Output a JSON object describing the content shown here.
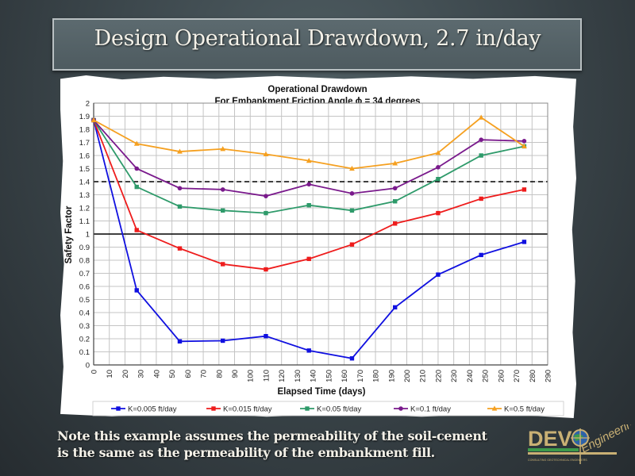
{
  "slide": {
    "title": "Design Operational Drawdown, 2.7 in/day",
    "note_line1": "Note this example assumes the permeability of the soil-cement",
    "note_line2": "is the same as the permeability of the embankment fill.",
    "logo": {
      "text": "DEVO",
      "script": "Engineering",
      "tagline": "CONSULTING GEOTECHNICAL ENGINEERS",
      "colors": {
        "gold": "#c9b074",
        "green": "#3d9a4a",
        "blue": "#2e62a8"
      }
    }
  },
  "chart_data": {
    "type": "line",
    "title": "Operational Drawdown",
    "subtitle": "For Embankment Friction Angle ϕ = 34 degrees",
    "xlabel": "Elapsed Time (days)",
    "ylabel": "Safety Factor",
    "xlim": [
      0,
      290
    ],
    "ylim": [
      0,
      2
    ],
    "xticks": [
      0,
      10,
      20,
      30,
      40,
      50,
      60,
      70,
      80,
      90,
      100,
      110,
      120,
      130,
      140,
      150,
      160,
      170,
      180,
      190,
      200,
      210,
      220,
      230,
      240,
      250,
      260,
      270,
      280,
      290
    ],
    "xtick_labels": [
      "0",
      "10",
      "20",
      "30",
      "40",
      "50",
      "60",
      "70",
      "80",
      "90",
      "100",
      "110",
      "120",
      "130",
      "140",
      "150",
      "160",
      "170",
      "180",
      "190",
      "200",
      "210",
      "220",
      "230",
      "240",
      "250",
      "260",
      "270",
      "280",
      "290"
    ],
    "yticks": [
      0,
      0.1,
      0.2,
      0.3,
      0.4,
      0.5,
      0.6,
      0.7,
      0.8,
      0.9,
      1,
      1.1,
      1.2,
      1.3,
      1.4,
      1.5,
      1.6,
      1.7,
      1.8,
      1.9,
      2
    ],
    "ytick_labels": [
      "0",
      "0.1",
      "0.2",
      "0.3",
      "0.4",
      "0.5",
      "0.6",
      "0.7",
      "0.8",
      "0.9",
      "1",
      "1.1",
      "1.2",
      "1.3",
      "1.4",
      "1.5",
      "1.6",
      "1.7",
      "1.8",
      "1.9",
      "2"
    ],
    "grid": true,
    "legend_position": "bottom",
    "reference_lines": [
      {
        "y": 1.0,
        "style": "solid",
        "color": "#000000"
      },
      {
        "y": 1.4,
        "style": "dashed",
        "color": "#000000"
      }
    ],
    "x": [
      0,
      27.5,
      55,
      82.5,
      110,
      137.5,
      165,
      192.5,
      220,
      247.5,
      275
    ],
    "series": [
      {
        "name": "K=0.005 ft/day",
        "color": "#1010e0",
        "marker": "square",
        "values": [
          1.87,
          0.57,
          0.18,
          0.185,
          0.22,
          0.11,
          0.05,
          0.44,
          0.69,
          0.84,
          0.94
        ]
      },
      {
        "name": "K=0.015 ft/day",
        "color": "#ee1c1c",
        "marker": "square",
        "values": [
          1.87,
          1.03,
          0.89,
          0.77,
          0.73,
          0.81,
          0.92,
          1.08,
          1.16,
          1.27,
          1.34
        ]
      },
      {
        "name": "K=0.05 ft/day",
        "color": "#2e9a6a",
        "marker": "square",
        "values": [
          1.87,
          1.36,
          1.21,
          1.18,
          1.16,
          1.22,
          1.18,
          1.25,
          1.42,
          1.6,
          1.67
        ]
      },
      {
        "name": "K=0.1 ft/day",
        "color": "#7a1a8c",
        "marker": "circle",
        "values": [
          1.87,
          1.5,
          1.35,
          1.34,
          1.29,
          1.38,
          1.31,
          1.35,
          1.51,
          1.72,
          1.71
        ]
      },
      {
        "name": "K=0.5 ft/day",
        "color": "#f5a020",
        "marker": "triangle",
        "values": [
          1.87,
          1.69,
          1.63,
          1.65,
          1.61,
          1.56,
          1.5,
          1.54,
          1.62,
          1.89,
          1.67
        ]
      }
    ]
  }
}
